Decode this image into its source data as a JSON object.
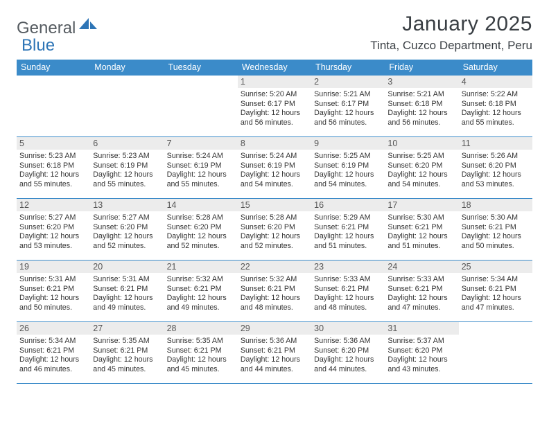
{
  "brand": {
    "text_gray": "General",
    "text_blue": "Blue"
  },
  "title": "January 2025",
  "location": "Tinta, Cuzco Department, Peru",
  "colors": {
    "header_bar": "#3b8bc9",
    "daynum_bg": "#ececec",
    "row_border": "#3b8bc9",
    "logo_gray": "#555b60",
    "logo_blue": "#2e75b6",
    "text": "#333333",
    "white": "#ffffff"
  },
  "days_of_week": [
    "Sunday",
    "Monday",
    "Tuesday",
    "Wednesday",
    "Thursday",
    "Friday",
    "Saturday"
  ],
  "weeks": [
    [
      {
        "n": "",
        "empty": true
      },
      {
        "n": "",
        "empty": true
      },
      {
        "n": "",
        "empty": true
      },
      {
        "n": "1",
        "sunrise": "Sunrise: 5:20 AM",
        "sunset": "Sunset: 6:17 PM",
        "d1": "Daylight: 12 hours",
        "d2": "and 56 minutes."
      },
      {
        "n": "2",
        "sunrise": "Sunrise: 5:21 AM",
        "sunset": "Sunset: 6:17 PM",
        "d1": "Daylight: 12 hours",
        "d2": "and 56 minutes."
      },
      {
        "n": "3",
        "sunrise": "Sunrise: 5:21 AM",
        "sunset": "Sunset: 6:18 PM",
        "d1": "Daylight: 12 hours",
        "d2": "and 56 minutes."
      },
      {
        "n": "4",
        "sunrise": "Sunrise: 5:22 AM",
        "sunset": "Sunset: 6:18 PM",
        "d1": "Daylight: 12 hours",
        "d2": "and 55 minutes."
      }
    ],
    [
      {
        "n": "5",
        "sunrise": "Sunrise: 5:23 AM",
        "sunset": "Sunset: 6:18 PM",
        "d1": "Daylight: 12 hours",
        "d2": "and 55 minutes."
      },
      {
        "n": "6",
        "sunrise": "Sunrise: 5:23 AM",
        "sunset": "Sunset: 6:19 PM",
        "d1": "Daylight: 12 hours",
        "d2": "and 55 minutes."
      },
      {
        "n": "7",
        "sunrise": "Sunrise: 5:24 AM",
        "sunset": "Sunset: 6:19 PM",
        "d1": "Daylight: 12 hours",
        "d2": "and 55 minutes."
      },
      {
        "n": "8",
        "sunrise": "Sunrise: 5:24 AM",
        "sunset": "Sunset: 6:19 PM",
        "d1": "Daylight: 12 hours",
        "d2": "and 54 minutes."
      },
      {
        "n": "9",
        "sunrise": "Sunrise: 5:25 AM",
        "sunset": "Sunset: 6:19 PM",
        "d1": "Daylight: 12 hours",
        "d2": "and 54 minutes."
      },
      {
        "n": "10",
        "sunrise": "Sunrise: 5:25 AM",
        "sunset": "Sunset: 6:20 PM",
        "d1": "Daylight: 12 hours",
        "d2": "and 54 minutes."
      },
      {
        "n": "11",
        "sunrise": "Sunrise: 5:26 AM",
        "sunset": "Sunset: 6:20 PM",
        "d1": "Daylight: 12 hours",
        "d2": "and 53 minutes."
      }
    ],
    [
      {
        "n": "12",
        "sunrise": "Sunrise: 5:27 AM",
        "sunset": "Sunset: 6:20 PM",
        "d1": "Daylight: 12 hours",
        "d2": "and 53 minutes."
      },
      {
        "n": "13",
        "sunrise": "Sunrise: 5:27 AM",
        "sunset": "Sunset: 6:20 PM",
        "d1": "Daylight: 12 hours",
        "d2": "and 52 minutes."
      },
      {
        "n": "14",
        "sunrise": "Sunrise: 5:28 AM",
        "sunset": "Sunset: 6:20 PM",
        "d1": "Daylight: 12 hours",
        "d2": "and 52 minutes."
      },
      {
        "n": "15",
        "sunrise": "Sunrise: 5:28 AM",
        "sunset": "Sunset: 6:20 PM",
        "d1": "Daylight: 12 hours",
        "d2": "and 52 minutes."
      },
      {
        "n": "16",
        "sunrise": "Sunrise: 5:29 AM",
        "sunset": "Sunset: 6:21 PM",
        "d1": "Daylight: 12 hours",
        "d2": "and 51 minutes."
      },
      {
        "n": "17",
        "sunrise": "Sunrise: 5:30 AM",
        "sunset": "Sunset: 6:21 PM",
        "d1": "Daylight: 12 hours",
        "d2": "and 51 minutes."
      },
      {
        "n": "18",
        "sunrise": "Sunrise: 5:30 AM",
        "sunset": "Sunset: 6:21 PM",
        "d1": "Daylight: 12 hours",
        "d2": "and 50 minutes."
      }
    ],
    [
      {
        "n": "19",
        "sunrise": "Sunrise: 5:31 AM",
        "sunset": "Sunset: 6:21 PM",
        "d1": "Daylight: 12 hours",
        "d2": "and 50 minutes."
      },
      {
        "n": "20",
        "sunrise": "Sunrise: 5:31 AM",
        "sunset": "Sunset: 6:21 PM",
        "d1": "Daylight: 12 hours",
        "d2": "and 49 minutes."
      },
      {
        "n": "21",
        "sunrise": "Sunrise: 5:32 AM",
        "sunset": "Sunset: 6:21 PM",
        "d1": "Daylight: 12 hours",
        "d2": "and 49 minutes."
      },
      {
        "n": "22",
        "sunrise": "Sunrise: 5:32 AM",
        "sunset": "Sunset: 6:21 PM",
        "d1": "Daylight: 12 hours",
        "d2": "and 48 minutes."
      },
      {
        "n": "23",
        "sunrise": "Sunrise: 5:33 AM",
        "sunset": "Sunset: 6:21 PM",
        "d1": "Daylight: 12 hours",
        "d2": "and 48 minutes."
      },
      {
        "n": "24",
        "sunrise": "Sunrise: 5:33 AM",
        "sunset": "Sunset: 6:21 PM",
        "d1": "Daylight: 12 hours",
        "d2": "and 47 minutes."
      },
      {
        "n": "25",
        "sunrise": "Sunrise: 5:34 AM",
        "sunset": "Sunset: 6:21 PM",
        "d1": "Daylight: 12 hours",
        "d2": "and 47 minutes."
      }
    ],
    [
      {
        "n": "26",
        "sunrise": "Sunrise: 5:34 AM",
        "sunset": "Sunset: 6:21 PM",
        "d1": "Daylight: 12 hours",
        "d2": "and 46 minutes."
      },
      {
        "n": "27",
        "sunrise": "Sunrise: 5:35 AM",
        "sunset": "Sunset: 6:21 PM",
        "d1": "Daylight: 12 hours",
        "d2": "and 45 minutes."
      },
      {
        "n": "28",
        "sunrise": "Sunrise: 5:35 AM",
        "sunset": "Sunset: 6:21 PM",
        "d1": "Daylight: 12 hours",
        "d2": "and 45 minutes."
      },
      {
        "n": "29",
        "sunrise": "Sunrise: 5:36 AM",
        "sunset": "Sunset: 6:21 PM",
        "d1": "Daylight: 12 hours",
        "d2": "and 44 minutes."
      },
      {
        "n": "30",
        "sunrise": "Sunrise: 5:36 AM",
        "sunset": "Sunset: 6:20 PM",
        "d1": "Daylight: 12 hours",
        "d2": "and 44 minutes."
      },
      {
        "n": "31",
        "sunrise": "Sunrise: 5:37 AM",
        "sunset": "Sunset: 6:20 PM",
        "d1": "Daylight: 12 hours",
        "d2": "and 43 minutes."
      },
      {
        "n": "",
        "empty": true
      }
    ]
  ]
}
